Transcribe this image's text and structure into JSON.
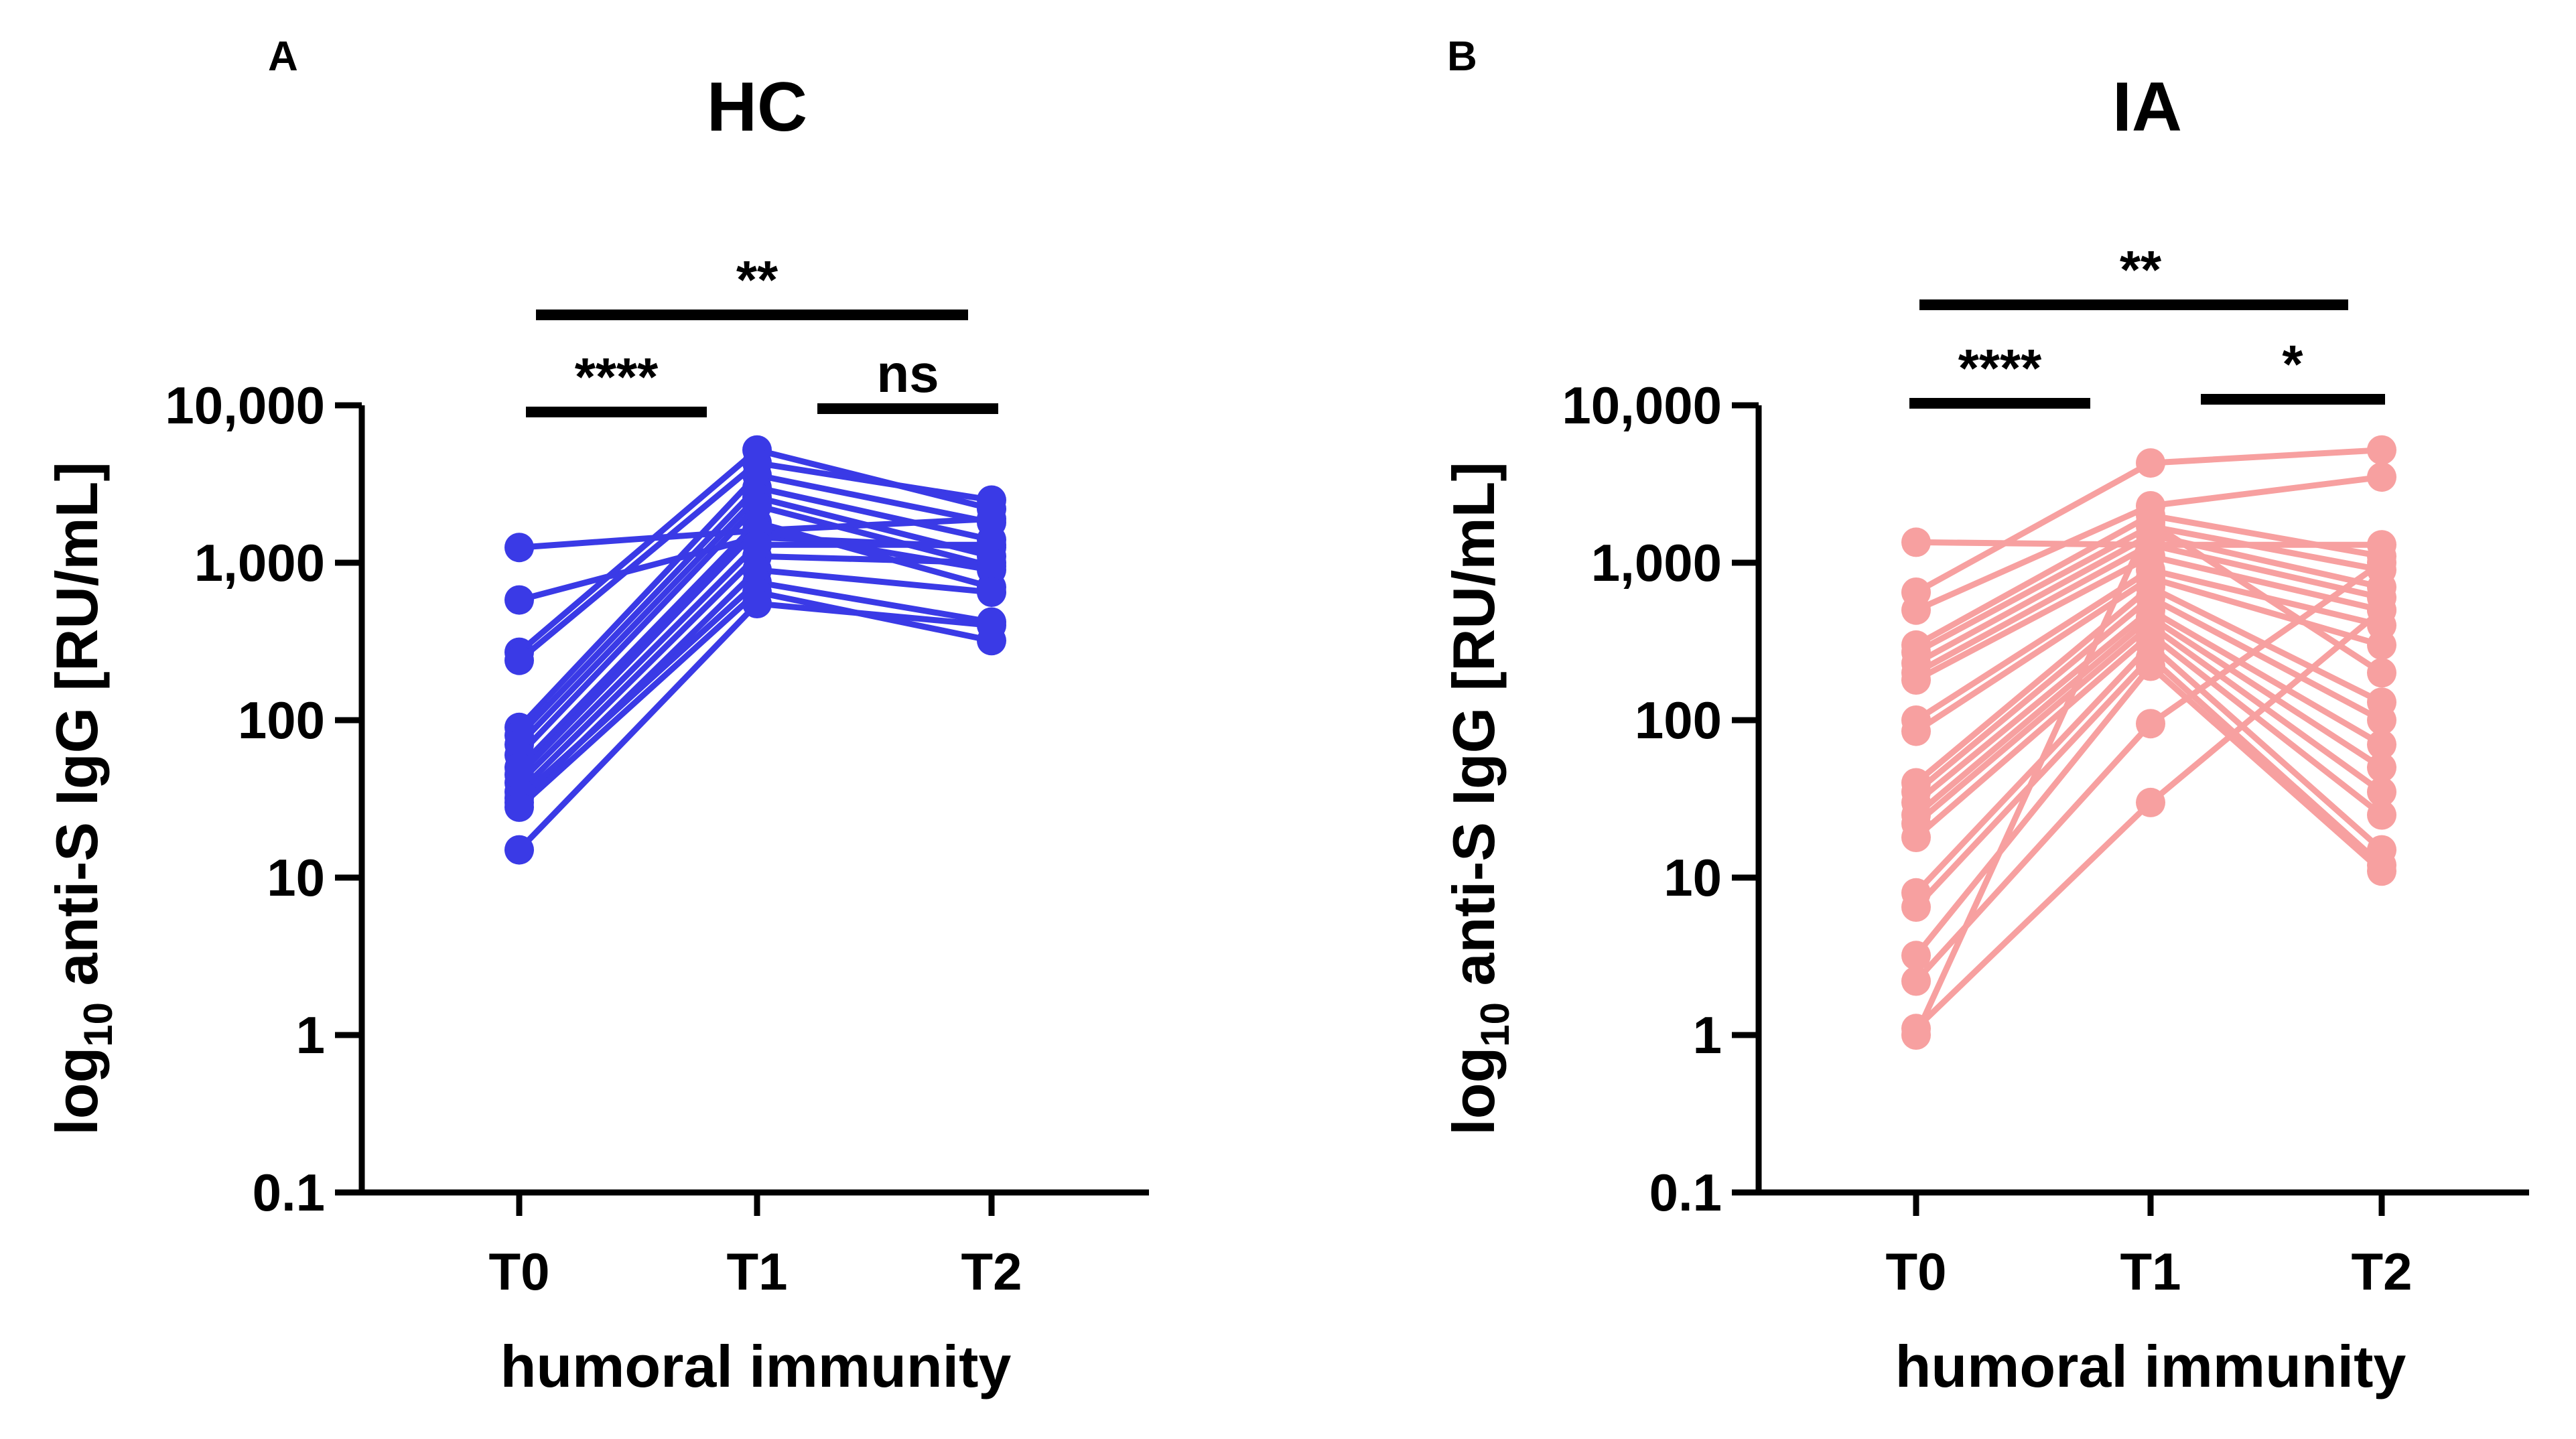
{
  "chart_data": [
    {
      "panel": "A",
      "type": "line",
      "title": "HC",
      "xlabel": "humoral immunity",
      "ylabel_main": "log",
      "ylabel_sub": "10",
      "ylabel_rest": " anti-S IgG [RU/mL]",
      "yscale": "log",
      "ylim": [
        0.1,
        10000
      ],
      "yticks": [
        0.1,
        1,
        10,
        100,
        1000,
        10000
      ],
      "ytick_labels": [
        "0.1",
        "1",
        "10",
        "100",
        "1,000",
        "10,000"
      ],
      "categories": [
        "T0",
        "T1",
        "T2"
      ],
      "color": "#3a3ae6",
      "significance": [
        {
          "from": "T0",
          "to": "T1",
          "label": "****"
        },
        {
          "from": "T1",
          "to": "T2",
          "label": "ns"
        },
        {
          "from": "T0",
          "to": "T2",
          "label": "**"
        }
      ],
      "subjects": [
        [
          1250,
          1600,
          1900
        ],
        [
          580,
          1450,
          1250
        ],
        [
          270,
          5200,
          2200
        ],
        [
          240,
          4300,
          2500
        ],
        [
          90,
          3600,
          1800
        ],
        [
          80,
          3000,
          1400
        ],
        [
          70,
          2600,
          1100
        ],
        [
          60,
          2300,
          950
        ],
        [
          50,
          1800,
          700
        ],
        [
          45,
          1600,
          900
        ],
        [
          40,
          1300,
          1300
        ],
        [
          35,
          1100,
          1000
        ],
        [
          30,
          900,
          650
        ],
        [
          32,
          750,
          420
        ],
        [
          28,
          650,
          320
        ],
        [
          15,
          550,
          400
        ]
      ]
    },
    {
      "panel": "B",
      "type": "line",
      "title": "IA",
      "xlabel": "humoral immunity",
      "ylabel_main": "log",
      "ylabel_sub": "10",
      "ylabel_rest": " anti-S IgG [RU/mL]",
      "yscale": "log",
      "ylim": [
        0.1,
        10000
      ],
      "yticks": [
        0.1,
        1,
        10,
        100,
        1000,
        10000
      ],
      "ytick_labels": [
        "0.1",
        "1",
        "10",
        "100",
        "1,000",
        "10,000"
      ],
      "categories": [
        "T0",
        "T1",
        "T2"
      ],
      "color": "#f7a0a0",
      "significance": [
        {
          "from": "T0",
          "to": "T1",
          "label": "****"
        },
        {
          "from": "T1",
          "to": "T2",
          "label": "*"
        },
        {
          "from": "T0",
          "to": "T2",
          "label": "**"
        }
      ],
      "subjects": [
        [
          1350,
          1300,
          1300
        ],
        [
          650,
          4300,
          5200
        ],
        [
          500,
          2300,
          3500
        ],
        [
          300,
          2000,
          1100
        ],
        [
          270,
          1700,
          900
        ],
        [
          230,
          1500,
          700
        ],
        [
          200,
          1300,
          600
        ],
        [
          180,
          1100,
          500
        ],
        [
          100,
          900,
          400
        ],
        [
          85,
          800,
          300
        ],
        [
          40,
          700,
          130
        ],
        [
          35,
          600,
          100
        ],
        [
          30,
          500,
          70
        ],
        [
          25,
          450,
          50
        ],
        [
          22,
          400,
          35
        ],
        [
          18,
          350,
          25
        ],
        [
          8,
          300,
          15
        ],
        [
          6.5,
          250,
          12
        ],
        [
          3.2,
          220,
          11
        ],
        [
          2.2,
          95,
          1000
        ],
        [
          1.1,
          30,
          500
        ],
        [
          1.0,
          1800,
          200
        ]
      ]
    }
  ]
}
